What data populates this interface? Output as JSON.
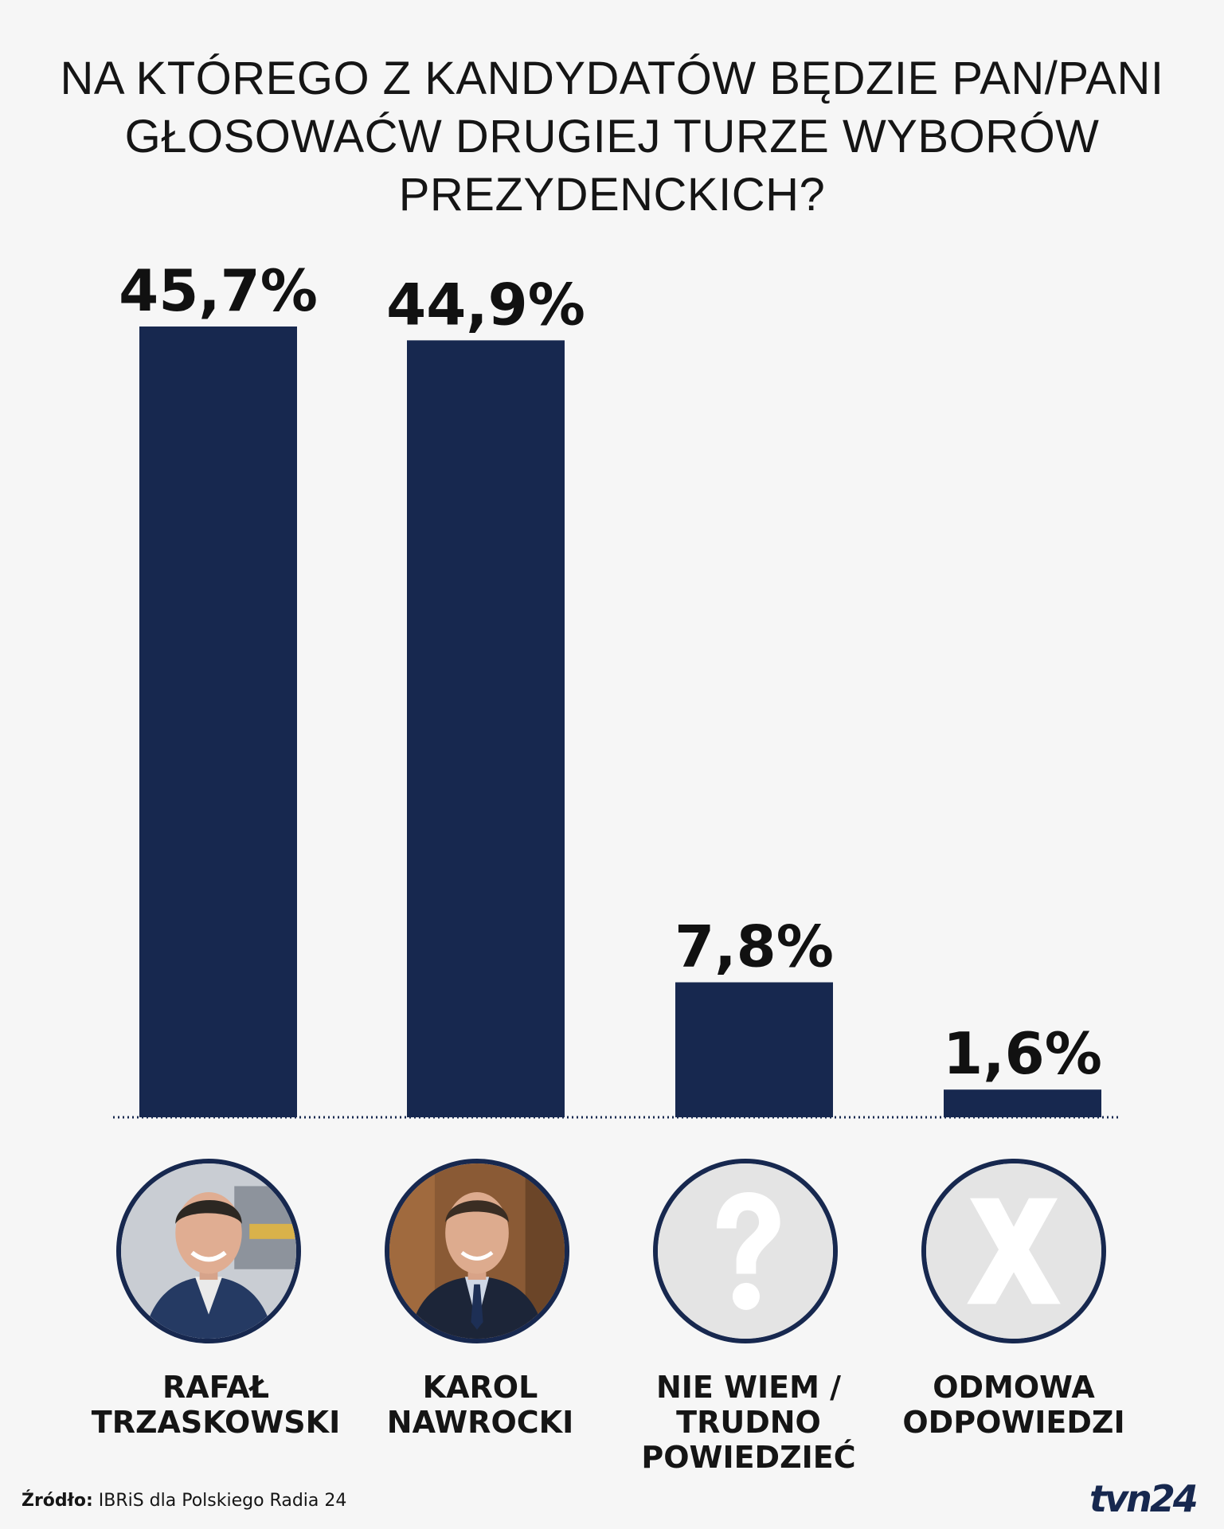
{
  "title_lines": [
    "NA KTÓREGO Z KANDYDATÓW BĘDZIE PAN/PANI",
    "GŁOSOWAĆW DRUGIEJ TURZE WYBORÓW",
    "PREZYDENCKICH?"
  ],
  "chart_data": {
    "type": "bar",
    "title": "NA KTÓREGO Z KANDYDATÓW BĘDZIE PAN/PANI GŁOSOWAĆW DRUGIEJ TURZE WYBORÓW PREZYDENCKICH?",
    "categories": [
      "RAFAŁ TRZASKOWSKI",
      "KAROL NAWROCKI",
      "NIE WIEM / TRUDNO POWIEDZIEĆ",
      "ODMOWA ODPOWIEDZI"
    ],
    "values": [
      45.7,
      44.9,
      7.8,
      1.6
    ],
    "value_labels": [
      "45,7%",
      "44,9%",
      "7,8%",
      "1,6%"
    ],
    "ylim": [
      0,
      45.7
    ],
    "bar_color": "#17284f",
    "grid": false,
    "legend": "none"
  },
  "categories": [
    {
      "label_lines": [
        "RAFAŁ",
        "TRZASKOWSKI"
      ],
      "icon": "portrait-photo"
    },
    {
      "label_lines": [
        "KAROL",
        "NAWROCKI"
      ],
      "icon": "portrait-photo"
    },
    {
      "label_lines": [
        "NIE WIEM /",
        "TRUDNO",
        "POWIEDZIEĆ"
      ],
      "icon": "question-mark-icon"
    },
    {
      "label_lines": [
        "ODMOWA",
        "ODPOWIEDZI"
      ],
      "icon": "x-icon"
    }
  ],
  "source": {
    "prefix": "Źródło:",
    "text": " IBRiS dla Polskiego Radia 24"
  },
  "logo": {
    "text": "tvn24",
    "color": "#17284f"
  }
}
